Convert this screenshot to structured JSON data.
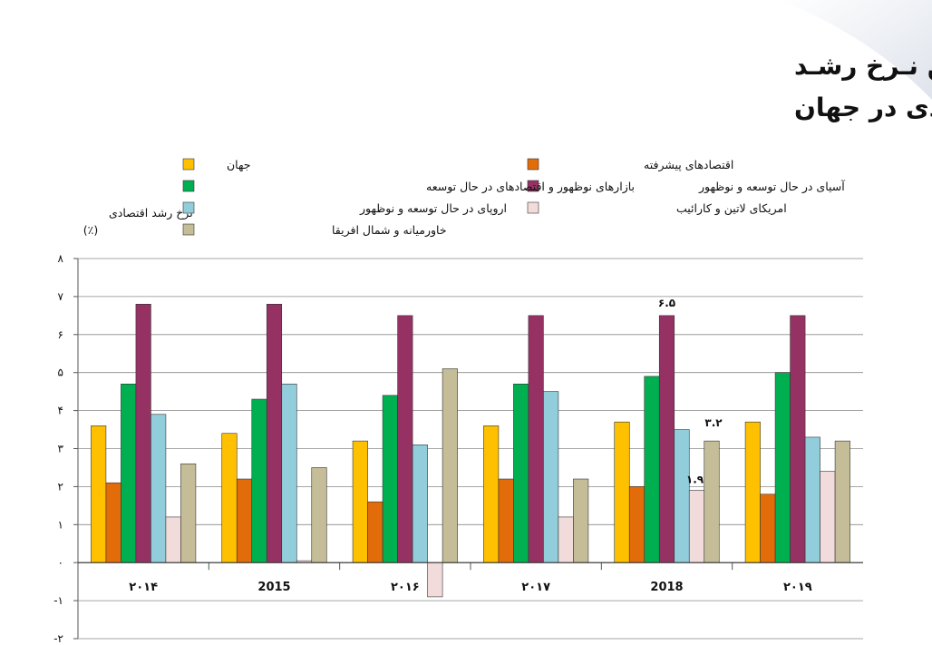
{
  "chart_data": {
    "type": "bar",
    "title_line1": "آسیای در حال توسعه و نوظهور پیشرو در کسـب بـالاترین نـرخ رشـد",
    "title_line2": "اقتصادی در جهان",
    "ylabel_line1": "نرخ رشد اقتصادی",
    "ylabel_line2": "(٪)",
    "categories": [
      "۲۰۱۴",
      "2015",
      "۲۰۱۶",
      "۲۰۱۷",
      "2018",
      "۲۰۱۹"
    ],
    "ylim": [
      -2,
      8
    ],
    "yticks": [
      "-۲",
      "-۱",
      "۰",
      "۱",
      "۲",
      "۳",
      "۴",
      "۵",
      "۶",
      "۷",
      "۸"
    ],
    "ytick_values": [
      -2,
      -1,
      0,
      1,
      2,
      3,
      4,
      5,
      6,
      7,
      8
    ],
    "grid": true,
    "legend_position": "top",
    "series": [
      {
        "name": "جهان",
        "color": "#ffc000",
        "values": [
          3.6,
          3.4,
          3.2,
          3.6,
          3.7,
          3.7
        ]
      },
      {
        "name": "اقتصادهای پیشرفته",
        "color": "#e36c0a",
        "values": [
          2.1,
          2.2,
          1.6,
          2.2,
          2.0,
          1.8
        ]
      },
      {
        "name": "بازارهای نوظهور و اقتصادهای در حال توسعه",
        "color": "#00b050",
        "values": [
          4.7,
          4.3,
          4.4,
          4.7,
          4.9,
          5.0
        ]
      },
      {
        "name": "آسیای در حال توسعه و نوظهور",
        "color": "#953263",
        "values": [
          6.8,
          6.8,
          6.5,
          6.5,
          6.5,
          6.5
        ]
      },
      {
        "name": "اروپای در حال توسعه و نوظهور",
        "color": "#92cddc",
        "values": [
          3.9,
          4.7,
          3.1,
          4.5,
          3.5,
          3.3
        ]
      },
      {
        "name": "امریکای لاتین و کارائیب",
        "color": "#f2dcdb",
        "values": [
          1.2,
          0.05,
          -0.9,
          1.2,
          1.9,
          2.4
        ]
      },
      {
        "name": "خاورمیانه و شمال افریقا",
        "color": "#c4bd97",
        "values": [
          2.6,
          2.5,
          5.1,
          2.2,
          3.2,
          3.2
        ]
      }
    ],
    "annotations": [
      {
        "text": "۶.۵",
        "category": 4,
        "series": 3
      },
      {
        "text": "۱.۹",
        "category": 4,
        "series": 5
      },
      {
        "text": "۳.۲",
        "category": 4,
        "series": 6
      }
    ]
  }
}
